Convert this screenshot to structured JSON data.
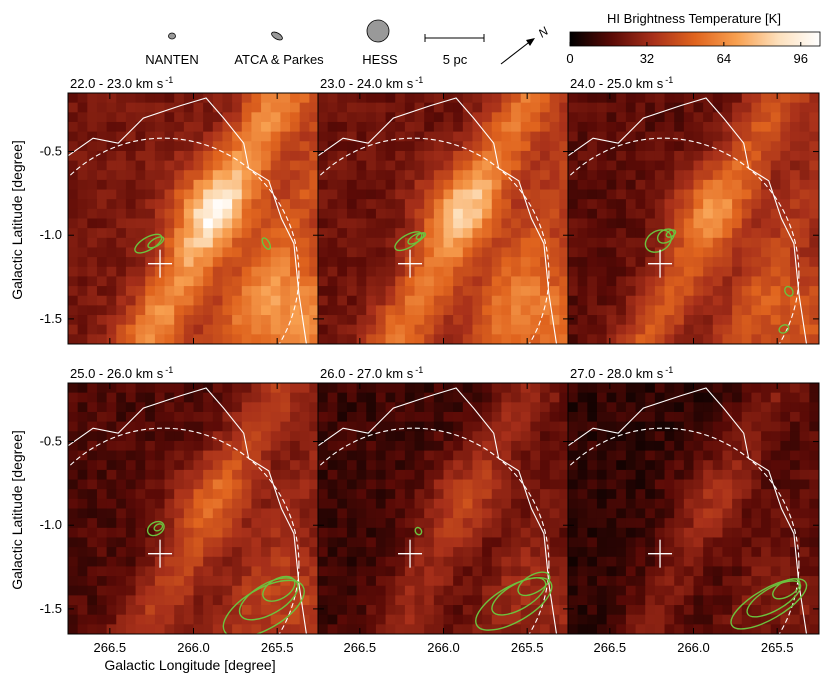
{
  "chart_data": {
    "type": "heatmap",
    "title": "HI Brightness Temperature [K]",
    "xlabel": "Galactic Longitude [degree]",
    "ylabel": "Galactic Latitude [degree]",
    "xlim": [
      266.75,
      265.25
    ],
    "ylim": [
      -1.65,
      -0.15
    ],
    "x_ticks": [
      {
        "value": 266.5,
        "label": "266.5"
      },
      {
        "value": 266.0,
        "label": "266.0"
      },
      {
        "value": 265.5,
        "label": "265.5"
      }
    ],
    "y_ticks": [
      {
        "value": -0.5,
        "label": "-0.5"
      },
      {
        "value": -1.0,
        "label": "-1.0"
      },
      {
        "value": -1.5,
        "label": "-1.5"
      }
    ],
    "colorbar": {
      "label": "HI Brightness Temperature [K]",
      "min": 0,
      "max": 104,
      "ticks": [
        {
          "value": 0,
          "label": "0"
        },
        {
          "value": 32,
          "label": "32"
        },
        {
          "value": 64,
          "label": "64"
        },
        {
          "value": 96,
          "label": "96"
        }
      ],
      "colors": [
        "#000000",
        "#5a0a06",
        "#a8301a",
        "#e0641e",
        "#f8a050",
        "#fde0bc",
        "#ffffff"
      ]
    },
    "legend": {
      "beams": [
        {
          "name": "NANTEN",
          "label": "NANTEN"
        },
        {
          "name": "ATCA & Parkes",
          "label": "ATCA & Parkes"
        },
        {
          "name": "HESS",
          "label": "HESS"
        }
      ],
      "scale_bar": "5 pc",
      "north_label": "N"
    },
    "marker": {
      "l": 266.2,
      "b": -1.17
    },
    "panels": [
      {
        "id": "p1",
        "v_from": "22.0",
        "v_to": "23.0",
        "unit": "km s",
        "exp": "-1",
        "intensity": 1.0,
        "co": "p1"
      },
      {
        "id": "p2",
        "v_from": "23.0",
        "v_to": "24.0",
        "unit": "km s",
        "exp": "-1",
        "intensity": 0.9,
        "co": "p2"
      },
      {
        "id": "p3",
        "v_from": "24.0",
        "v_to": "25.0",
        "unit": "km s",
        "exp": "-1",
        "intensity": 0.75,
        "co": "p3"
      },
      {
        "id": "p4",
        "v_from": "25.0",
        "v_to": "26.0",
        "unit": "km s",
        "exp": "-1",
        "intensity": 0.62,
        "co": "p4"
      },
      {
        "id": "p5",
        "v_from": "26.0",
        "v_to": "27.0",
        "unit": "km s",
        "exp": "-1",
        "intensity": 0.48,
        "co": "p5"
      },
      {
        "id": "p6",
        "v_from": "27.0",
        "v_to": "28.0",
        "unit": "km s",
        "exp": "-1",
        "intensity": 0.38,
        "co": "p6"
      }
    ],
    "colors": {
      "contour": "#6cc23e",
      "outline": "#ffffff"
    }
  }
}
